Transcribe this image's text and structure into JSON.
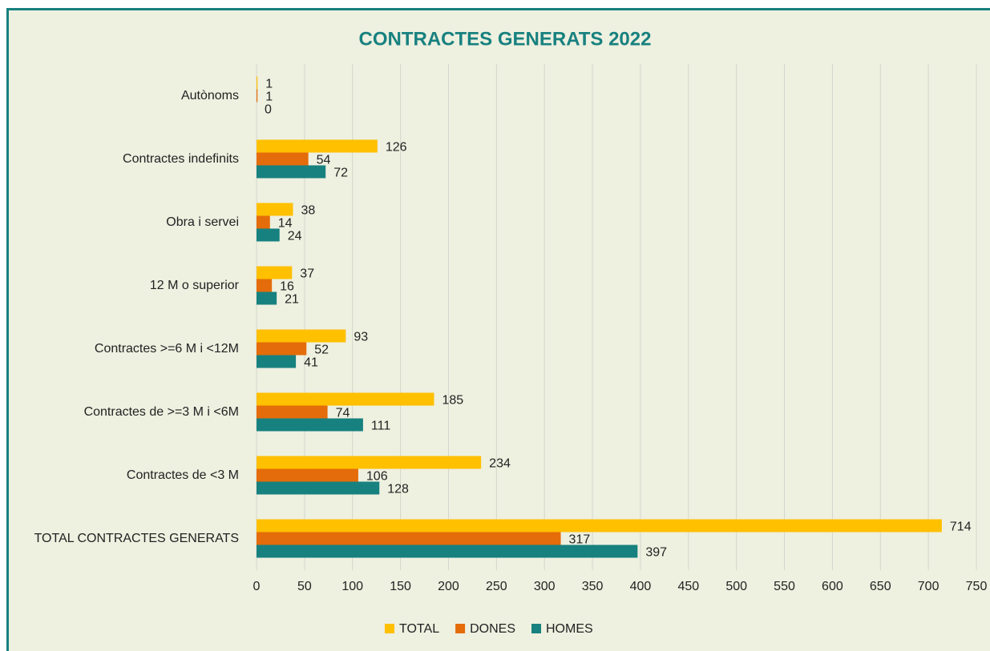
{
  "chart_data": {
    "type": "bar",
    "orientation": "horizontal",
    "title": "CONTRACTES GENERATS 2022",
    "categories": [
      "Autònoms",
      "Contractes indefinits",
      "Obra i servei",
      "12 M o superior",
      "Contractes  >=6 M i <12M",
      "Contractes de >=3 M i <6M",
      "Contractes de <3 M",
      "TOTAL CONTRACTES GENERATS"
    ],
    "series": [
      {
        "name": "TOTAL",
        "color": "#ffc000",
        "values": [
          1,
          126,
          38,
          37,
          93,
          185,
          234,
          714
        ]
      },
      {
        "name": "DONES",
        "color": "#e46c0a",
        "values": [
          1,
          54,
          14,
          16,
          52,
          74,
          106,
          317
        ]
      },
      {
        "name": "HOMES",
        "color": "#17817f",
        "values": [
          0,
          72,
          24,
          21,
          41,
          111,
          128,
          397
        ]
      }
    ],
    "xlim": [
      0,
      750
    ],
    "xticks": [
      0,
      50,
      100,
      150,
      200,
      250,
      300,
      350,
      400,
      450,
      500,
      550,
      600,
      650,
      700,
      750
    ],
    "grid": true,
    "legend": "bottom"
  }
}
